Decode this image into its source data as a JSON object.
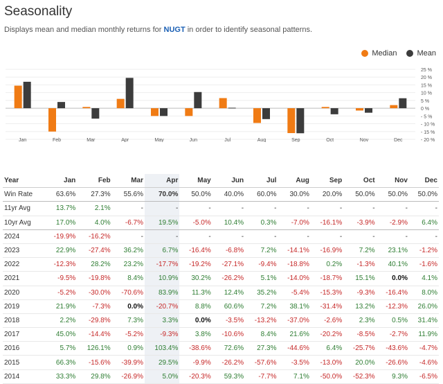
{
  "header": {
    "title": "Seasonality",
    "subtitle_pre": "Displays mean and median monthly returns for ",
    "ticker": "NUGT",
    "subtitle_post": " in order to identify seasonal patterns."
  },
  "legend": {
    "median_label": "Median",
    "mean_label": "Mean",
    "median_color": "#f07b14",
    "mean_color": "#3c3c3c"
  },
  "chart_data": {
    "type": "bar",
    "categories": [
      "Jan",
      "Feb",
      "Mar",
      "Apr",
      "May",
      "Jun",
      "Jul",
      "Aug",
      "Sep",
      "Oct",
      "Nov",
      "Dec"
    ],
    "series": [
      {
        "name": "Median",
        "values": [
          14.5,
          -15.0,
          0.8,
          6.0,
          -5.0,
          -5.0,
          6.5,
          -9.5,
          -16.0,
          0.8,
          -1.5,
          2.0
        ]
      },
      {
        "name": "Mean",
        "values": [
          17.0,
          4.0,
          -6.7,
          19.5,
          -5.0,
          10.4,
          0.3,
          -7.0,
          -16.1,
          -3.9,
          -2.9,
          6.4
        ]
      }
    ],
    "ylim": [
      -20,
      25
    ],
    "yticks": [
      25,
      20,
      15,
      10,
      5,
      0,
      -5,
      -10,
      -15,
      -20
    ],
    "ytick_labels": [
      "25 %",
      "20 %",
      "15 %",
      "10 %",
      "5 %",
      "0 %",
      "- 5 %",
      "- 10 %",
      "- 15 %",
      "- 20 %"
    ],
    "grid": true
  },
  "table": {
    "year_header": "Year",
    "months": [
      "Jan",
      "Feb",
      "Mar",
      "Apr",
      "May",
      "Jun",
      "Jul",
      "Aug",
      "Sep",
      "Oct",
      "Nov",
      "Dec"
    ],
    "rows": [
      {
        "label": "Win Rate",
        "values": [
          "63.6%",
          "27.3%",
          "55.6%",
          "70.0%",
          "50.0%",
          "40.0%",
          "60.0%",
          "30.0%",
          "20.0%",
          "50.0%",
          "50.0%",
          "50.0%"
        ]
      },
      {
        "label": "11yr Avg",
        "values": [
          "13.7%",
          "2.1%",
          "-",
          "-",
          "-",
          "-",
          "-",
          "-",
          "-",
          "-",
          "-",
          "-"
        ]
      },
      {
        "label": "10yr Avg",
        "values": [
          "17.0%",
          "4.0%",
          "-6.7%",
          "19.5%",
          "-5.0%",
          "10.4%",
          "0.3%",
          "-7.0%",
          "-16.1%",
          "-3.9%",
          "-2.9%",
          "6.4%"
        ]
      },
      {
        "label": "2024",
        "values": [
          "-19.9%",
          "-16.2%",
          "-",
          "-",
          "-",
          "-",
          "-",
          "-",
          "-",
          "-",
          "-",
          "-"
        ]
      },
      {
        "label": "2023",
        "values": [
          "22.9%",
          "-27.4%",
          "36.2%",
          "6.7%",
          "-16.4%",
          "-6.8%",
          "7.2%",
          "-14.1%",
          "-16.9%",
          "7.2%",
          "23.1%",
          "-1.2%"
        ]
      },
      {
        "label": "2022",
        "values": [
          "-12.3%",
          "28.2%",
          "23.2%",
          "-17.7%",
          "-19.2%",
          "-27.1%",
          "-9.4%",
          "-18.8%",
          "0.2%",
          "-1.3%",
          "40.1%",
          "-1.6%"
        ]
      },
      {
        "label": "2021",
        "values": [
          "-9.5%",
          "-19.8%",
          "8.4%",
          "10.9%",
          "30.2%",
          "-26.2%",
          "5.1%",
          "-14.0%",
          "-18.7%",
          "15.1%",
          "0.0%",
          "4.1%"
        ]
      },
      {
        "label": "2020",
        "values": [
          "-5.2%",
          "-30.0%",
          "-70.6%",
          "83.9%",
          "11.3%",
          "12.4%",
          "35.2%",
          "-5.4%",
          "-15.3%",
          "-9.3%",
          "-16.4%",
          "8.0%"
        ]
      },
      {
        "label": "2019",
        "values": [
          "21.9%",
          "-7.3%",
          "0.0%",
          "-20.7%",
          "8.8%",
          "60.6%",
          "7.2%",
          "38.1%",
          "-31.4%",
          "13.2%",
          "-12.3%",
          "26.0%"
        ]
      },
      {
        "label": "2018",
        "values": [
          "2.2%",
          "-29.8%",
          "7.3%",
          "3.3%",
          "0.0%",
          "-3.5%",
          "-13.2%",
          "-37.0%",
          "-2.6%",
          "2.3%",
          "0.5%",
          "31.4%"
        ]
      },
      {
        "label": "2017",
        "values": [
          "45.0%",
          "-14.4%",
          "-5.2%",
          "-9.3%",
          "3.8%",
          "-10.6%",
          "8.4%",
          "21.6%",
          "-20.2%",
          "-8.5%",
          "-2.7%",
          "11.9%"
        ]
      },
      {
        "label": "2016",
        "values": [
          "5.7%",
          "126.1%",
          "0.9%",
          "103.4%",
          "-38.6%",
          "72.6%",
          "27.3%",
          "-44.6%",
          "6.4%",
          "-25.7%",
          "-43.6%",
          "-4.7%"
        ]
      },
      {
        "label": "2015",
        "values": [
          "66.3%",
          "-15.6%",
          "-39.9%",
          "29.5%",
          "-9.9%",
          "-26.2%",
          "-57.6%",
          "-3.5%",
          "-13.0%",
          "20.0%",
          "-26.6%",
          "-4.6%"
        ]
      },
      {
        "label": "2014",
        "values": [
          "33.3%",
          "29.8%",
          "-26.9%",
          "5.0%",
          "-20.3%",
          "59.3%",
          "-7.7%",
          "7.1%",
          "-50.0%",
          "-52.3%",
          "9.3%",
          "-6.5%"
        ]
      }
    ]
  }
}
